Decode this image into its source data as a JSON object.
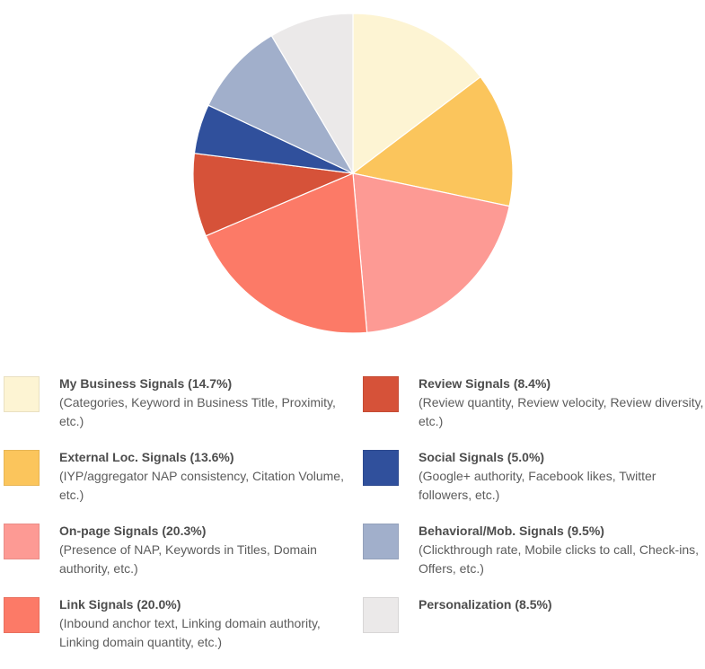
{
  "chart_data": {
    "type": "pie",
    "start_angle_deg": 0,
    "direction": "clockwise",
    "slices": [
      {
        "title": "My Business Signals (14.7%)",
        "description": "(Categories, Keyword in Business Title, Proximity, etc.)",
        "value": 14.7,
        "color": "#fdf4d3"
      },
      {
        "title": "External Loc. Signals (13.6%)",
        "description": "(IYP/aggregator NAP consistency, Citation Volume, etc.)",
        "value": 13.6,
        "color": "#fbc55c"
      },
      {
        "title": "On-page Signals (20.3%)",
        "description": "(Presence of NAP, Keywords in Titles, Domain authority, etc.)",
        "value": 20.3,
        "color": "#fd9a94"
      },
      {
        "title": "Link Signals (20.0%)",
        "description": "(Inbound anchor text, Linking domain authority, Linking domain quantity, etc.)",
        "value": 20.0,
        "color": "#fc7a67"
      },
      {
        "title": "Review Signals (8.4%)",
        "description": "(Review quantity, Review velocity, Review diversity, etc.)",
        "value": 8.4,
        "color": "#d65239"
      },
      {
        "title": "Social Signals (5.0%)",
        "description": "(Google+ authority, Facebook likes, Twitter followers, etc.)",
        "value": 5.0,
        "color": "#30509c"
      },
      {
        "title": "Behavioral/Mob. Signals (9.5%)",
        "description": "(Clickthrough rate, Mobile clicks to call, Check-ins, Offers, etc.)",
        "value": 9.5,
        "color": "#a1afcb"
      },
      {
        "title": "Personalization (8.5%)",
        "description": "",
        "value": 8.5,
        "color": "#ebe9e9"
      }
    ],
    "legend_placement": "bottom"
  }
}
